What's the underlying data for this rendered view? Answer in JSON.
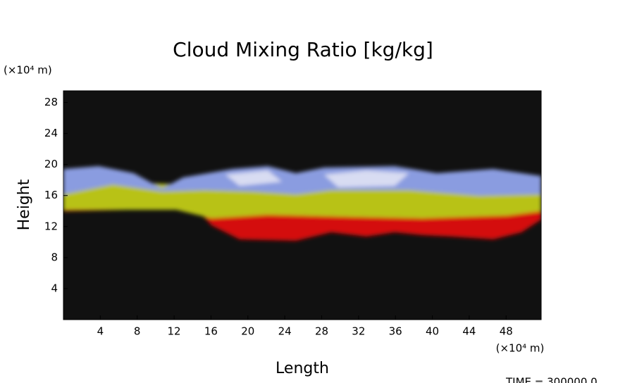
{
  "chart_data": {
    "type": "image",
    "title": "Cloud Mixing Ratio [kg/kg]",
    "y_unit": "(×10⁴ m)",
    "x_unit": "(×10⁴ m)",
    "xlabel": "Length",
    "ylabel": "Height",
    "annotation": "TIME = 300000.0",
    "xlim": [
      0,
      51.8
    ],
    "ylim": [
      0,
      29.5
    ],
    "xticks": [
      4,
      8,
      12,
      16,
      20,
      24,
      28,
      32,
      36,
      40,
      44,
      48
    ],
    "yticks": [
      4,
      8,
      12,
      16,
      20,
      24,
      28
    ]
  }
}
